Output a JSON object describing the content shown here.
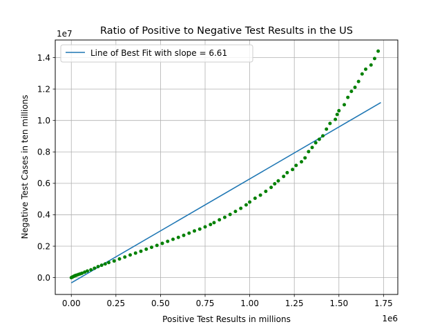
{
  "chart_data": {
    "type": "scatter",
    "title": "Ratio of Positive to Negative Test Results in the US",
    "xlabel": "Positive Test Results in millions",
    "ylabel": "Negative Test Cases in ten millions",
    "x_offset_label": "1e6",
    "y_offset_label": "1e7",
    "xlim": [
      -90000,
      1830000
    ],
    "ylim": [
      -1070000,
      15120000
    ],
    "x_ticks": [
      0,
      250000,
      500000,
      750000,
      1000000,
      1250000,
      1500000,
      1750000
    ],
    "x_tick_labels": [
      "0.00",
      "0.25",
      "0.50",
      "0.75",
      "1.00",
      "1.25",
      "1.50",
      "1.75"
    ],
    "y_ticks": [
      0,
      2000000,
      4000000,
      6000000,
      8000000,
      10000000,
      12000000,
      14000000
    ],
    "y_tick_labels": [
      "0.0",
      "0.2",
      "0.4",
      "0.6",
      "0.8",
      "1.0",
      "1.2",
      "1.4"
    ],
    "grid": true,
    "legend": {
      "position": "top-left",
      "entries": [
        "Line of Best Fit with slope = 6.61"
      ]
    },
    "series": [
      {
        "name": "Line of Best Fit with slope = 6.61",
        "kind": "line",
        "color": "#1f77b4",
        "points": [
          [
            0,
            -330000
          ],
          [
            1735000,
            11140000
          ]
        ]
      },
      {
        "kind": "scatter",
        "color": "#008000",
        "points": [
          [
            0,
            0
          ],
          [
            5000,
            30000
          ],
          [
            10000,
            60000
          ],
          [
            15000,
            90000
          ],
          [
            20000,
            120000
          ],
          [
            25000,
            140000
          ],
          [
            30000,
            160000
          ],
          [
            40000,
            200000
          ],
          [
            50000,
            240000
          ],
          [
            60000,
            280000
          ],
          [
            75000,
            350000
          ],
          [
            90000,
            420000
          ],
          [
            110000,
            500000
          ],
          [
            130000,
            600000
          ],
          [
            150000,
            700000
          ],
          [
            170000,
            790000
          ],
          [
            190000,
            870000
          ],
          [
            210000,
            960000
          ],
          [
            240000,
            1060000
          ],
          [
            270000,
            1190000
          ],
          [
            300000,
            1310000
          ],
          [
            330000,
            1440000
          ],
          [
            360000,
            1560000
          ],
          [
            390000,
            1680000
          ],
          [
            420000,
            1810000
          ],
          [
            450000,
            1930000
          ],
          [
            480000,
            2050000
          ],
          [
            510000,
            2180000
          ],
          [
            540000,
            2310000
          ],
          [
            570000,
            2440000
          ],
          [
            600000,
            2560000
          ],
          [
            630000,
            2690000
          ],
          [
            660000,
            2830000
          ],
          [
            690000,
            2970000
          ],
          [
            720000,
            3090000
          ],
          [
            750000,
            3230000
          ],
          [
            780000,
            3380000
          ],
          [
            800000,
            3500000
          ],
          [
            830000,
            3680000
          ],
          [
            860000,
            3840000
          ],
          [
            890000,
            4020000
          ],
          [
            920000,
            4210000
          ],
          [
            950000,
            4410000
          ],
          [
            980000,
            4630000
          ],
          [
            1000000,
            4810000
          ],
          [
            1030000,
            5050000
          ],
          [
            1060000,
            5250000
          ],
          [
            1090000,
            5490000
          ],
          [
            1120000,
            5740000
          ],
          [
            1140000,
            5970000
          ],
          [
            1160000,
            6160000
          ],
          [
            1190000,
            6440000
          ],
          [
            1210000,
            6680000
          ],
          [
            1240000,
            6880000
          ],
          [
            1260000,
            7140000
          ],
          [
            1290000,
            7370000
          ],
          [
            1310000,
            7620000
          ],
          [
            1330000,
            8020000
          ],
          [
            1350000,
            8280000
          ],
          [
            1370000,
            8580000
          ],
          [
            1390000,
            8800000
          ],
          [
            1410000,
            9020000
          ],
          [
            1430000,
            9450000
          ],
          [
            1450000,
            9810000
          ],
          [
            1480000,
            10070000
          ],
          [
            1490000,
            10380000
          ],
          [
            1500000,
            10620000
          ],
          [
            1530000,
            11000000
          ],
          [
            1550000,
            11470000
          ],
          [
            1570000,
            11850000
          ],
          [
            1590000,
            12110000
          ],
          [
            1610000,
            12480000
          ],
          [
            1630000,
            12960000
          ],
          [
            1650000,
            13260000
          ],
          [
            1680000,
            13530000
          ],
          [
            1700000,
            13940000
          ],
          [
            1720000,
            14410000
          ]
        ]
      }
    ]
  }
}
